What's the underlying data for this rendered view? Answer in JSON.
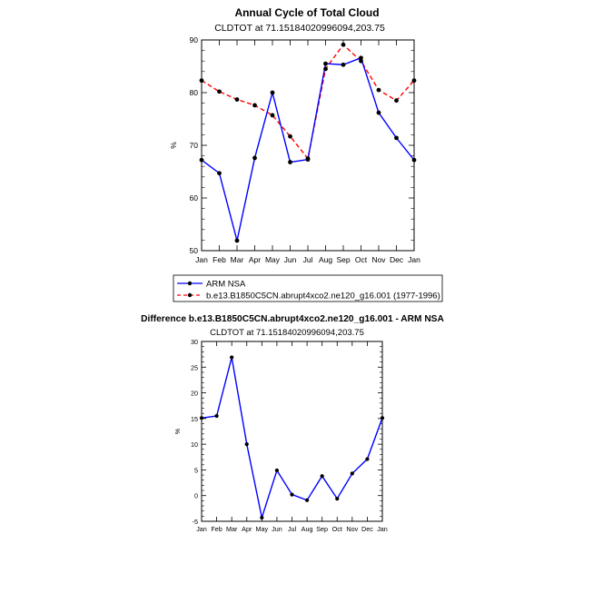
{
  "chart_data": [
    {
      "type": "line",
      "title": "Annual Cycle of Total Cloud",
      "subtitle": "CLDTOT at 71.15184020996094,203.75",
      "xlabel": "",
      "ylabel": "%",
      "categories": [
        "Jan",
        "Feb",
        "Mar",
        "Apr",
        "May",
        "Jun",
        "Jul",
        "Aug",
        "Sep",
        "Oct",
        "Nov",
        "Dec",
        "Jan"
      ],
      "ylim": [
        50,
        90
      ],
      "yticks": [
        50,
        60,
        70,
        80,
        90
      ],
      "series": [
        {
          "name": "ARM NSA",
          "color": "#0000ff",
          "style": "solid",
          "values": [
            67.2,
            64.7,
            51.9,
            67.6,
            80.0,
            66.8,
            67.3,
            85.5,
            85.3,
            86.6,
            76.2,
            71.4,
            67.2
          ]
        },
        {
          "name": "b.e13.B1850C5CN.abrupt4xco2.ne120_g16.001 (1977-1996)",
          "color": "#ff0000",
          "style": "dashed",
          "values": [
            82.3,
            80.2,
            78.7,
            77.6,
            75.7,
            71.7,
            67.5,
            84.5,
            89.1,
            86.0,
            80.5,
            78.5,
            82.3
          ]
        }
      ]
    },
    {
      "type": "line",
      "title": "Difference b.e13.B1850C5CN.abrupt4xco2.ne120_g16.001 - ARM NSA",
      "subtitle": "CLDTOT at 71.15184020996094,203.75",
      "xlabel": "",
      "ylabel": "%",
      "categories": [
        "Jan",
        "Feb",
        "Mar",
        "Apr",
        "May",
        "Jun",
        "Jul",
        "Aug",
        "Sep",
        "Oct",
        "Nov",
        "Dec",
        "Jan"
      ],
      "ylim": [
        -5,
        30
      ],
      "yticks": [
        -5,
        0,
        5,
        10,
        15,
        20,
        25,
        30
      ],
      "series": [
        {
          "name": "Difference",
          "color": "#0000ff",
          "style": "solid",
          "values": [
            15.1,
            15.5,
            26.9,
            10.0,
            -4.3,
            4.9,
            0.2,
            -0.9,
            3.8,
            -0.6,
            4.3,
            7.1,
            15.1
          ]
        }
      ]
    }
  ]
}
